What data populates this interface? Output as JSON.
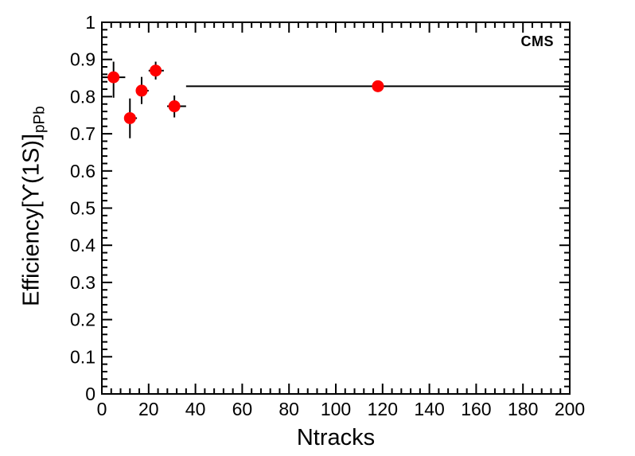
{
  "chart_data": {
    "type": "scatter",
    "title": "",
    "xlabel": "Ntracks",
    "ylabel_main": "Efficiency[ϒ(1S)]",
    "ylabel_sub": "pPb",
    "annotation": "CMS",
    "xlim": [
      0,
      200
    ],
    "ylim": [
      0,
      1
    ],
    "grid": false,
    "legend": null,
    "x_major_ticks": [
      0,
      20,
      40,
      60,
      80,
      100,
      120,
      140,
      160,
      180,
      200
    ],
    "x_tick_labels": [
      "0",
      "20",
      "40",
      "60",
      "80",
      "100",
      "120",
      "140",
      "160",
      "180",
      "200"
    ],
    "x_minor_step": 4,
    "y_major_ticks": [
      0,
      0.1,
      0.2,
      0.3,
      0.4,
      0.5,
      0.6,
      0.7,
      0.8,
      0.9,
      1
    ],
    "y_tick_labels": [
      "0",
      "0.1",
      "0.2",
      "0.3",
      "0.4",
      "0.5",
      "0.6",
      "0.7",
      "0.8",
      "0.9",
      "1"
    ],
    "y_minor_step": 0.02,
    "axis_color": "#000000",
    "marker": {
      "shape": "circle",
      "color": "#ff0000",
      "radius_px": 7.5
    },
    "error_bar_color": "#000000",
    "points": [
      {
        "x": 5,
        "y": 0.852,
        "x_lo": 0,
        "x_hi": 10,
        "y_lo": 0.797,
        "y_hi": 0.894
      },
      {
        "x": 12,
        "y": 0.742,
        "x_lo": 10,
        "x_hi": 15,
        "y_lo": 0.688,
        "y_hi": 0.795
      },
      {
        "x": 17,
        "y": 0.816,
        "x_lo": 15,
        "x_hi": 20,
        "y_lo": 0.78,
        "y_hi": 0.853
      },
      {
        "x": 23,
        "y": 0.87,
        "x_lo": 20,
        "x_hi": 26.5,
        "y_lo": 0.846,
        "y_hi": 0.894
      },
      {
        "x": 31,
        "y": 0.774,
        "x_lo": 27.9,
        "x_hi": 36,
        "y_lo": 0.744,
        "y_hi": 0.803
      },
      {
        "x": 118,
        "y": 0.828,
        "x_lo": 36,
        "x_hi": 200,
        "y_lo": 0.828,
        "y_hi": 0.828
      }
    ]
  }
}
